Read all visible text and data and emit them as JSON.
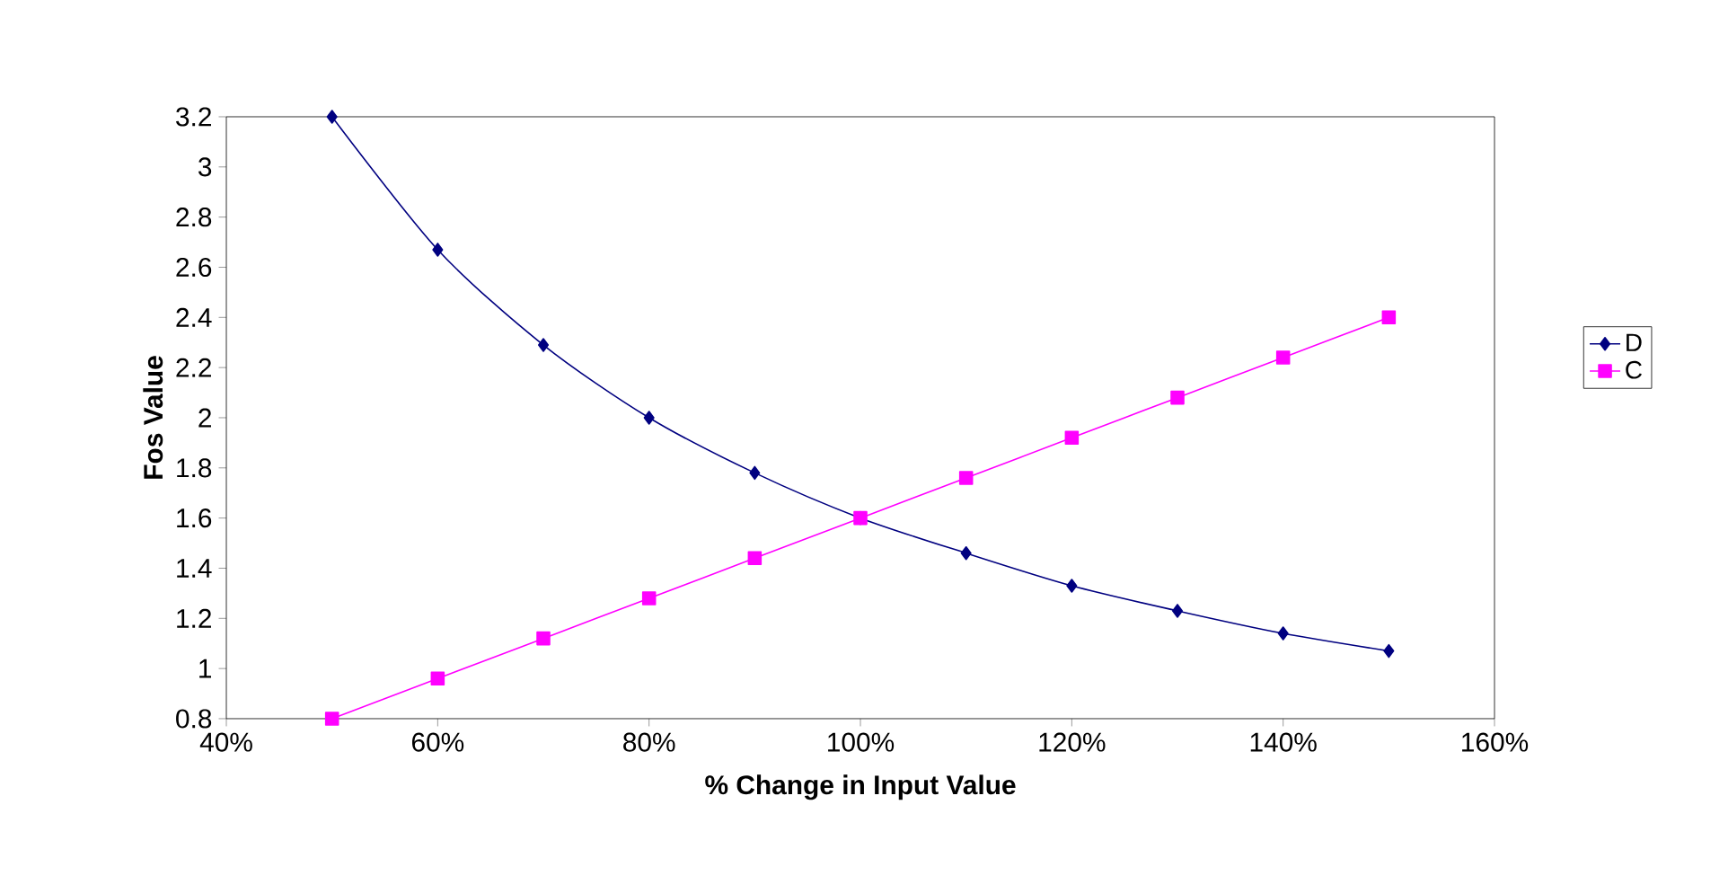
{
  "chart_data": {
    "type": "line",
    "xlabel": "% Change in Input Value",
    "ylabel": "Fos Value",
    "x": [
      50,
      60,
      70,
      80,
      90,
      100,
      110,
      120,
      130,
      140,
      150
    ],
    "series": [
      {
        "name": "D",
        "color": "#000080",
        "marker": "diamond",
        "values": [
          3.2,
          2.67,
          2.29,
          2.0,
          1.78,
          1.6,
          1.46,
          1.33,
          1.23,
          1.14,
          1.07
        ]
      },
      {
        "name": "C",
        "color": "#ff00ff",
        "marker": "square",
        "values": [
          0.8,
          0.96,
          1.12,
          1.28,
          1.44,
          1.6,
          1.76,
          1.92,
          2.08,
          2.24,
          2.4
        ]
      }
    ],
    "xlim": [
      40,
      160
    ],
    "xticks": [
      {
        "value": 40,
        "label": "40%"
      },
      {
        "value": 60,
        "label": "60%"
      },
      {
        "value": 80,
        "label": "80%"
      },
      {
        "value": 100,
        "label": "100%"
      },
      {
        "value": 120,
        "label": "120%"
      },
      {
        "value": 140,
        "label": "140%"
      },
      {
        "value": 160,
        "label": "160%"
      }
    ],
    "ylim": [
      0.8,
      3.2
    ],
    "yticks": [
      0.8,
      1,
      1.2,
      1.4,
      1.6,
      1.8,
      2,
      2.2,
      2.4,
      2.6,
      2.8,
      3,
      3.2
    ],
    "legend": "right",
    "grid": false,
    "line_style": "solid"
  }
}
